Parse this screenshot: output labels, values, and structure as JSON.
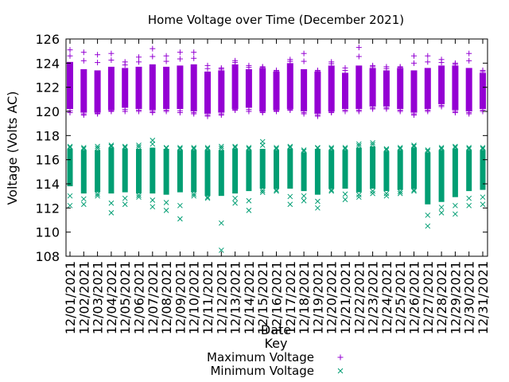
{
  "chart_data": {
    "type": "scatter",
    "title": "Home Voltage over Time (December 2021)",
    "xlabel": "Date",
    "ylabel": "Voltage (Volts AC)",
    "ylim": [
      108,
      126
    ],
    "y_ticks": [
      108,
      110,
      112,
      114,
      116,
      118,
      120,
      122,
      124,
      126
    ],
    "grid": false,
    "legend": {
      "title": "Key",
      "placement": "bottom-center"
    },
    "categories": [
      "12/01/2021",
      "12/02/2021",
      "12/03/2021",
      "12/04/2021",
      "12/05/2021",
      "12/06/2021",
      "12/07/2021",
      "12/08/2021",
      "12/09/2021",
      "12/10/2021",
      "12/11/2021",
      "12/12/2021",
      "12/13/2021",
      "12/14/2021",
      "12/15/2021",
      "12/16/2021",
      "12/17/2021",
      "12/18/2021",
      "12/19/2021",
      "12/20/2021",
      "12/21/2021",
      "12/22/2021",
      "12/23/2021",
      "12/24/2021",
      "12/25/2021",
      "12/26/2021",
      "12/27/2021",
      "12/28/2021",
      "12/29/2021",
      "12/30/2021",
      "12/31/2021"
    ],
    "series": [
      {
        "name": "Maximum Voltage",
        "color": "#9400d3",
        "marker": "plus",
        "low": [
          120.2,
          119.9,
          119.9,
          120.1,
          120.3,
          120.2,
          120.1,
          120.2,
          120.2,
          120.0,
          119.8,
          119.9,
          120.2,
          120.3,
          120.0,
          120.1,
          120.2,
          120.0,
          119.8,
          120.0,
          120.2,
          120.2,
          120.4,
          120.4,
          120.2,
          119.9,
          120.2,
          120.6,
          120.1,
          120.0,
          120.2
        ],
        "high": [
          124.1,
          123.5,
          123.4,
          123.7,
          123.6,
          123.7,
          123.9,
          123.7,
          123.8,
          123.9,
          123.3,
          123.4,
          123.9,
          123.5,
          123.6,
          123.3,
          124.0,
          123.5,
          123.3,
          123.8,
          123.2,
          123.8,
          123.6,
          123.4,
          123.6,
          123.4,
          123.6,
          123.8,
          123.8,
          123.6,
          123.2
        ],
        "outliers_high": [
          125.1,
          124.9,
          124.7,
          124.8,
          124.1,
          124.5,
          125.2,
          124.6,
          124.9,
          124.9,
          123.8,
          123.6,
          124.2,
          123.8,
          123.7,
          123.4,
          124.3,
          124.8,
          123.4,
          124.1,
          123.6,
          125.3,
          123.8,
          123.7,
          123.7,
          124.6,
          124.6,
          124.3,
          124.0,
          124.8,
          123.4
        ],
        "outliers_low": [
          119.9,
          119.7,
          119.8,
          120.0,
          120.0,
          120.0,
          119.9,
          120.0,
          119.9,
          119.8,
          119.6,
          119.7,
          120.1,
          120.0,
          119.9,
          120.0,
          120.1,
          119.8,
          119.6,
          119.9,
          120.0,
          120.0,
          120.2,
          120.2,
          120.0,
          119.7,
          120.0,
          120.4,
          119.9,
          119.8,
          120.0
        ]
      },
      {
        "name": "Minimum Voltage",
        "color": "#009e73",
        "marker": "cross",
        "low": [
          113.8,
          113.2,
          113.3,
          113.2,
          113.3,
          113.2,
          113.2,
          113.1,
          113.3,
          113.3,
          113.0,
          113.0,
          113.2,
          113.4,
          113.6,
          113.6,
          113.6,
          113.4,
          113.1,
          113.6,
          113.6,
          113.3,
          113.6,
          113.4,
          113.5,
          113.6,
          112.3,
          112.5,
          112.9,
          113.4,
          113.5
        ],
        "high": [
          116.9,
          116.8,
          116.8,
          117.0,
          116.9,
          116.9,
          117.0,
          116.9,
          116.8,
          116.8,
          116.8,
          116.8,
          116.9,
          116.8,
          116.9,
          116.8,
          116.9,
          116.6,
          116.9,
          116.8,
          116.8,
          117.0,
          117.1,
          116.7,
          116.8,
          117.0,
          116.6,
          116.8,
          116.9,
          116.8,
          116.8
        ],
        "outliers_high": [
          117.1,
          117.0,
          117.1,
          117.2,
          117.1,
          117.2,
          117.6,
          117.0,
          117.0,
          117.0,
          117.0,
          117.1,
          117.1,
          117.0,
          117.5,
          117.0,
          117.1,
          116.8,
          117.0,
          117.0,
          117.0,
          117.3,
          117.4,
          116.9,
          117.0,
          117.2,
          116.8,
          117.0,
          117.1,
          117.0,
          117.0
        ],
        "outliers_low": [
          112.2,
          112.3,
          113.0,
          111.6,
          112.3,
          112.9,
          112.1,
          111.8,
          111.1,
          113.0,
          112.8,
          108.5,
          112.4,
          111.8,
          113.3,
          113.4,
          112.3,
          112.6,
          112.0,
          113.4,
          112.7,
          112.9,
          113.2,
          113.0,
          113.2,
          113.4,
          110.5,
          111.6,
          111.5,
          112.2,
          112.3
        ]
      }
    ]
  }
}
